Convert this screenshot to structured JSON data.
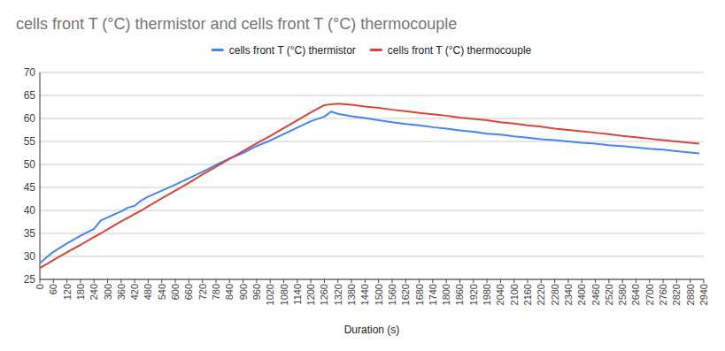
{
  "chart_data": {
    "type": "line",
    "title": "cells front T (°C) thermistor and cells front T (°C) thermocouple",
    "x_label": "Duration (s)",
    "x": [
      0,
      30,
      60,
      120,
      180,
      240,
      270,
      300,
      360,
      390,
      420,
      450,
      480,
      540,
      600,
      660,
      720,
      780,
      840,
      900,
      960,
      1020,
      1080,
      1140,
      1200,
      1260,
      1290,
      1320,
      1380,
      1440,
      1500,
      1560,
      1620,
      1680,
      1740,
      1800,
      1860,
      1920,
      1980,
      2040,
      2100,
      2160,
      2220,
      2280,
      2340,
      2400,
      2460,
      2520,
      2580,
      2640,
      2700,
      2760,
      2820,
      2880,
      2920
    ],
    "series": [
      {
        "name": "cells front T (°C) thermistor",
        "color": "#4285f4",
        "values": [
          28.5,
          29.8,
          31.0,
          32.8,
          34.5,
          36.0,
          37.8,
          38.5,
          39.8,
          40.6,
          41.0,
          42.2,
          43.0,
          44.3,
          45.6,
          47.0,
          48.4,
          49.9,
          51.3,
          52.5,
          54.0,
          55.2,
          56.6,
          58.0,
          59.4,
          60.4,
          61.5,
          61.0,
          60.5,
          60.1,
          59.6,
          59.2,
          58.8,
          58.5,
          58.1,
          57.8,
          57.4,
          57.1,
          56.7,
          56.5,
          56.1,
          55.8,
          55.5,
          55.3,
          55.0,
          54.7,
          54.5,
          54.2,
          54.0,
          53.7,
          53.4,
          53.2,
          52.9,
          52.6,
          52.4
        ]
      },
      {
        "name": "cells front T (°C) thermocouple",
        "color": "#db4437",
        "values": [
          27.5,
          28.3,
          29.2,
          30.9,
          32.5,
          34.2,
          35.0,
          35.9,
          37.6,
          38.4,
          39.2,
          40.0,
          40.9,
          42.6,
          44.3,
          46.0,
          47.8,
          49.5,
          51.2,
          52.9,
          54.6,
          56.2,
          57.9,
          59.6,
          61.3,
          62.9,
          63.1,
          63.2,
          63.0,
          62.6,
          62.3,
          61.9,
          61.6,
          61.2,
          60.9,
          60.6,
          60.2,
          59.9,
          59.6,
          59.2,
          58.9,
          58.5,
          58.2,
          57.8,
          57.5,
          57.2,
          56.9,
          56.6,
          56.2,
          55.9,
          55.6,
          55.3,
          55.0,
          54.7,
          54.5
        ]
      }
    ],
    "xlim": [
      0,
      2940
    ],
    "ylim": [
      25,
      70
    ],
    "xticks": [
      0,
      60,
      120,
      180,
      240,
      300,
      360,
      420,
      480,
      540,
      600,
      660,
      720,
      780,
      840,
      900,
      960,
      1020,
      1080,
      1140,
      1200,
      1260,
      1320,
      1380,
      1440,
      1500,
      1560,
      1620,
      1680,
      1740,
      1800,
      1860,
      1920,
      1980,
      2040,
      2100,
      2160,
      2220,
      2280,
      2340,
      2400,
      2460,
      2520,
      2580,
      2640,
      2700,
      2760,
      2820,
      2880,
      2940
    ],
    "yticks": [
      25,
      30,
      35,
      40,
      45,
      50,
      55,
      60,
      65,
      70
    ],
    "grid": true,
    "legend": "top"
  }
}
